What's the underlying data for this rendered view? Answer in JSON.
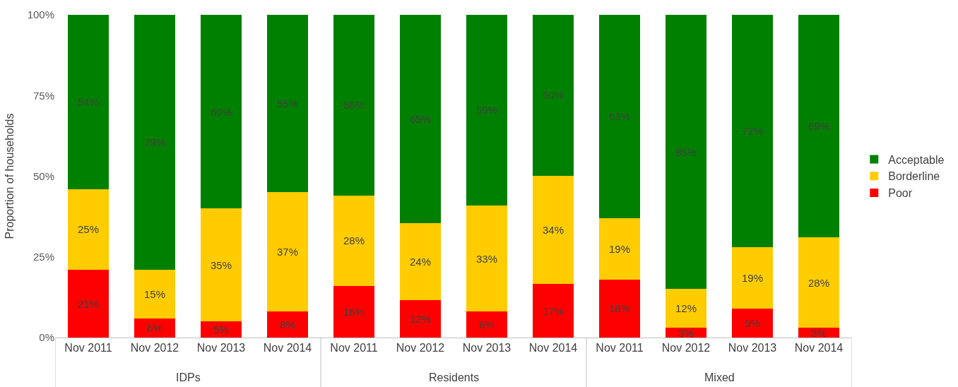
{
  "chart_data": {
    "type": "bar",
    "stacked": true,
    "ylabel": "Proportion of households",
    "categories": [
      "Nov 2011",
      "Nov 2012",
      "Nov 2013",
      "Nov 2014",
      "Nov 2011",
      "Nov 2012",
      "Nov 2013",
      "Nov 2014",
      "Nov 2011",
      "Nov 2012",
      "Nov 2013",
      "Nov 2014"
    ],
    "series": [
      {
        "name": "Poor",
        "color": "#ff0000",
        "values": [
          21,
          6,
          5,
          8,
          16,
          11.6,
          8,
          16.6,
          18,
          3,
          9,
          3
        ],
        "value_labels": [
          "21%",
          "6%",
          "5%",
          "8%",
          "16%",
          "12%",
          "8%",
          "17%",
          "18%",
          "3%",
          "9%",
          "3%"
        ]
      },
      {
        "name": "Borderline",
        "color": "#ffcc00",
        "values": [
          25,
          15,
          35,
          37,
          28,
          23.8,
          33,
          33.6,
          19,
          12,
          19,
          28
        ],
        "value_labels": [
          "25%",
          "15%",
          "35%",
          "37%",
          "28%",
          "24%",
          "33%",
          "34%",
          "19%",
          "12%",
          "19%",
          "28%"
        ]
      },
      {
        "name": "Acceptable",
        "color": "#008000",
        "values": [
          54,
          79,
          60,
          55,
          56,
          64.6,
          59,
          49.8,
          63,
          85,
          72,
          69
        ],
        "value_labels": [
          "54%",
          "79%",
          "60%",
          "55%",
          "56%",
          "65%",
          "59%",
          "50%",
          "63%",
          "85%",
          "72%",
          "69%"
        ]
      }
    ],
    "annotations": [
      "IDPs",
      "Residents",
      "Mixed"
    ],
    "ylim": [
      0,
      100
    ],
    "yticks": [
      {
        "value": 0,
        "label": "0%"
      },
      {
        "value": 25,
        "label": "25%"
      },
      {
        "value": 50,
        "label": "50%"
      },
      {
        "value": 75,
        "label": "75%"
      },
      {
        "value": 100,
        "label": "100%"
      }
    ],
    "legend": "right"
  }
}
